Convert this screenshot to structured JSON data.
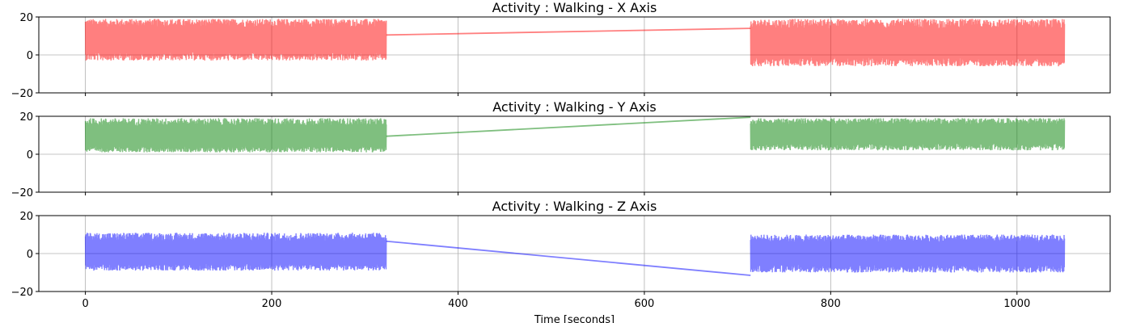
{
  "chart_data": [
    {
      "type": "line",
      "title": "Activity : Walking - X Axis",
      "xlabel": "",
      "ylabel": "",
      "xlim": [
        -50,
        1100
      ],
      "ylim": [
        -20,
        20
      ],
      "yticks": [
        -20,
        0,
        20
      ],
      "xticks": [
        0,
        200,
        400,
        600,
        800,
        1000
      ],
      "xtick_labels_visible": false,
      "grid": true,
      "color": "#ff0000",
      "alpha": 0.5,
      "series": [
        {
          "segments": [
            {
              "x_start": 0,
              "x_end": 323,
              "band_low": -3,
              "band_high": 19,
              "mean": 8
            },
            {
              "x_start": 714,
              "x_end": 1051,
              "band_low": -6,
              "band_high": 19,
              "mean": 6
            }
          ],
          "connector": {
            "x": [
              323,
              714
            ],
            "y": [
              10.5,
              14
            ]
          }
        }
      ]
    },
    {
      "type": "line",
      "title": "Activity : Walking - Y Axis",
      "xlabel": "",
      "ylabel": "",
      "xlim": [
        -50,
        1100
      ],
      "ylim": [
        -20,
        20
      ],
      "yticks": [
        -20,
        0,
        20
      ],
      "xticks": [
        0,
        200,
        400,
        600,
        800,
        1000
      ],
      "xtick_labels_visible": false,
      "grid": true,
      "color": "#008000",
      "alpha": 0.5,
      "series": [
        {
          "segments": [
            {
              "x_start": 0,
              "x_end": 323,
              "band_low": 1,
              "band_high": 19,
              "mean": 9
            },
            {
              "x_start": 714,
              "x_end": 1051,
              "band_low": 2,
              "band_high": 19,
              "mean": 11
            }
          ],
          "connector": {
            "x": [
              323,
              714
            ],
            "y": [
              9.5,
              19.5
            ]
          }
        }
      ]
    },
    {
      "type": "line",
      "title": "Activity : Walking - Z Axis",
      "xlabel": "Time [seconds]",
      "ylabel": "",
      "xlim": [
        -50,
        1100
      ],
      "ylim": [
        -20,
        20
      ],
      "yticks": [
        -20,
        0,
        20
      ],
      "xticks": [
        0,
        200,
        400,
        600,
        800,
        1000
      ],
      "xtick_labels_visible": true,
      "grid": true,
      "color": "#0000ff",
      "alpha": 0.5,
      "series": [
        {
          "segments": [
            {
              "x_start": 0,
              "x_end": 323,
              "band_low": -9,
              "band_high": 11,
              "mean": 0
            },
            {
              "x_start": 714,
              "x_end": 1051,
              "band_low": -10,
              "band_high": 10,
              "mean": 0
            }
          ],
          "connector": {
            "x": [
              323,
              714
            ],
            "y": [
              6.5,
              -11.5
            ]
          }
        }
      ]
    }
  ]
}
